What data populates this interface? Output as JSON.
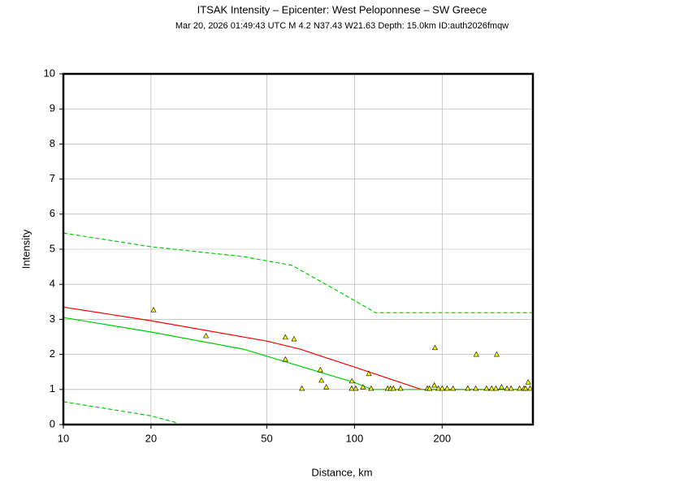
{
  "chart_data": {
    "type": "scatter",
    "title": "ITSAK Intensity –  Epicenter: West Peloponnese – SW Greece",
    "subtitle": "Mar 20, 2026 01:49:43 UTC   M 4.2   N37.43 W21.63   Depth: 15.0km   ID:auth2026fmqw",
    "x_label": "Distance, km",
    "y_label": "Intensity",
    "log_x": true,
    "grid": true,
    "xlim": [
      10,
      410
    ],
    "ylim": [
      0,
      10
    ],
    "xticks": [
      10,
      20,
      50,
      100,
      200
    ],
    "yticks": [
      0,
      1,
      2,
      3,
      4,
      5,
      6,
      7,
      8,
      9,
      10
    ],
    "series": [
      {
        "kind": "line",
        "color": "#ff0000",
        "dashed": false,
        "x": [
          10,
          20,
          50,
          65,
          100,
          170,
          410
        ],
        "values": [
          3.35,
          2.96,
          2.38,
          2.15,
          1.64,
          1.0,
          1.0
        ]
      },
      {
        "kind": "line",
        "color": "#00cc00",
        "dashed": false,
        "x": [
          10,
          20,
          41.5,
          100,
          115,
          410
        ],
        "values": [
          3.05,
          2.64,
          2.15,
          1.2,
          1.0,
          1.0
        ]
      },
      {
        "kind": "line",
        "color": "#00cc00",
        "dashed": true,
        "x": [
          10,
          20,
          41.5,
          61,
          100,
          118,
          410
        ],
        "values": [
          5.46,
          5.07,
          4.79,
          4.54,
          3.54,
          3.19,
          3.19
        ]
      },
      {
        "kind": "line",
        "color": "#00cc00",
        "dashed": true,
        "x": [
          10,
          20,
          24.5
        ],
        "values": [
          0.65,
          0.25,
          0.05
        ]
      },
      {
        "kind": "points",
        "color": "#ffff00",
        "marker": "triangle",
        "x": [
          20.4,
          30.9,
          57.9,
          62,
          57.9,
          66,
          76.3,
          77,
          80,
          98,
          97.8,
          101,
          107,
          112,
          114,
          130,
          133,
          136,
          144,
          178,
          181,
          188,
          189,
          194,
          200,
          208,
          218,
          245,
          262,
          261,
          284,
          296,
          306,
          308,
          320,
          334,
          345,
          369,
          382,
          387,
          395,
          401
        ],
        "values": [
          3.26,
          2.52,
          2.48,
          2.43,
          1.85,
          1.02,
          1.55,
          1.25,
          1.06,
          1.23,
          1.02,
          1.02,
          1.06,
          1.44,
          1.02,
          1.02,
          1.02,
          1.02,
          1.02,
          1.02,
          1.02,
          1.11,
          2.18,
          1.02,
          1.02,
          1.02,
          1.02,
          1.02,
          1.99,
          1.02,
          1.02,
          1.02,
          1.02,
          1.99,
          1.06,
          1.02,
          1.02,
          1.02,
          1.02,
          1.02,
          1.2,
          1.02
        ]
      }
    ]
  }
}
